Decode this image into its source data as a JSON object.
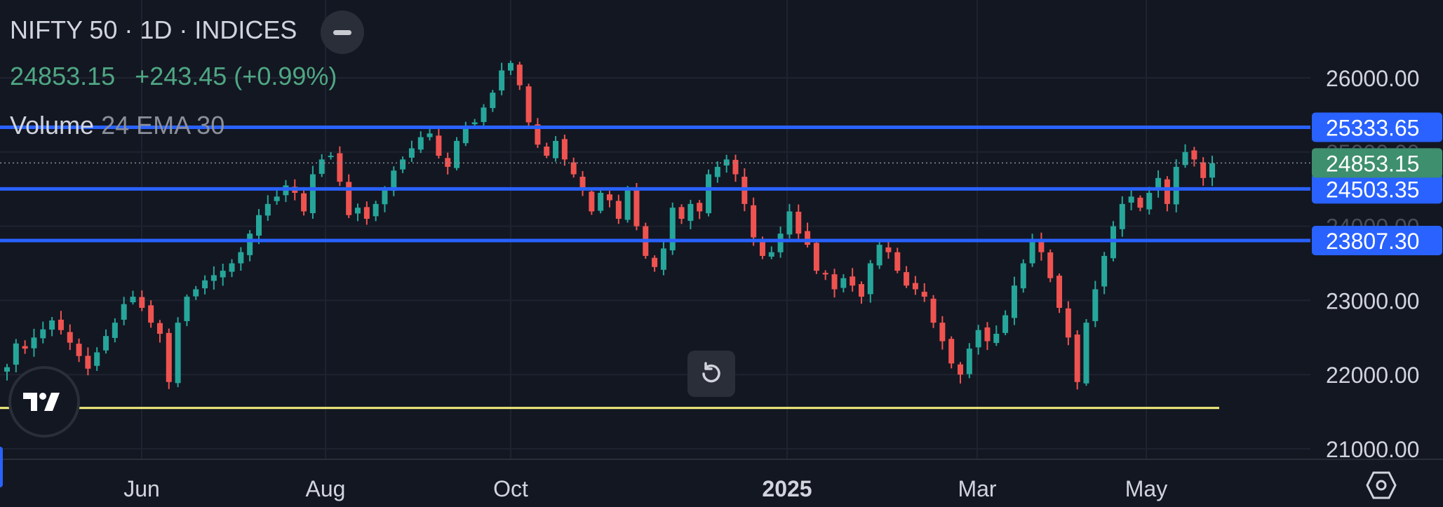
{
  "header": {
    "title": "NIFTY 50 · 1D · INDICES",
    "last_price": "24853.15",
    "change": "+243.45 (+0.99%)",
    "indicator_label": "Volume",
    "indicator_params": "24 EMA 30"
  },
  "icons": {
    "collapse": "minus-circle-icon",
    "reset": "rotate-ccw-icon",
    "logo": "tradingview-logo-icon",
    "settings": "hexagon-settings-icon"
  },
  "colors": {
    "background": "#131722",
    "up": "#26a69a",
    "down": "#ef5350",
    "hline": "#2962ff",
    "support": "#f5f07a",
    "last_price_tag": "#3e8f6e",
    "grid": "#1f2330",
    "axis_text": "#d1d4dc"
  },
  "chart_data": {
    "type": "candlestick",
    "symbol": "NIFTY 50",
    "interval": "1D",
    "ylim": [
      20800,
      26400
    ],
    "x_ticks": [
      "Jun",
      "Aug",
      "Oct",
      "2025",
      "Mar",
      "May"
    ],
    "y_ticks": [
      "26000.00",
      "23000.00",
      "22000.00",
      "21000.00"
    ],
    "y_ticks_faded": [
      "25000.00",
      "24000.00"
    ],
    "horizontal_lines": [
      {
        "value": 25333.65,
        "label": "25333.65",
        "color": "#2962ff"
      },
      {
        "value": 24503.35,
        "label": "24503.35",
        "color": "#2962ff"
      },
      {
        "value": 23807.3,
        "label": "23807.30",
        "color": "#2962ff"
      },
      {
        "value": 21550,
        "label": "",
        "color": "#f5f07a"
      }
    ],
    "last_price": {
      "value": 24853.15,
      "label": "24853.15"
    },
    "candles_note": "approximate daily closes read from chart; OHLC generated from closes",
    "closes": [
      22100,
      22420,
      22350,
      22500,
      22610,
      22730,
      22600,
      22430,
      22250,
      22080,
      22300,
      22520,
      22700,
      22950,
      23050,
      22900,
      22700,
      22550,
      21900,
      22700,
      23050,
      23150,
      23270,
      23340,
      23400,
      23500,
      23650,
      23900,
      24150,
      24300,
      24400,
      24550,
      24450,
      24200,
      24700,
      24900,
      24950,
      24600,
      24150,
      24250,
      24100,
      24300,
      24500,
      24750,
      24900,
      25050,
      25200,
      25250,
      24950,
      24800,
      25150,
      25350,
      25400,
      25600,
      25800,
      26100,
      26200,
      25900,
      25400,
      25100,
      24950,
      25150,
      24900,
      24700,
      24500,
      24200,
      24450,
      24350,
      24100,
      24500,
      24000,
      23600,
      23450,
      23700,
      24250,
      24100,
      24300,
      24200,
      24700,
      24800,
      24900,
      24700,
      24300,
      23850,
      23600,
      23650,
      23900,
      24200,
      23900,
      23750,
      23400,
      23350,
      23150,
      23300,
      23200,
      23050,
      23500,
      23750,
      23650,
      23400,
      23200,
      23150,
      23050,
      22700,
      22450,
      22150,
      22000,
      22350,
      22600,
      22450,
      22550,
      22800,
      23200,
      23500,
      23800,
      23650,
      23300,
      22900,
      22500,
      21900,
      22700,
      23150,
      23600,
      24000,
      24300,
      24400,
      24250,
      24450,
      24650,
      24300,
      24800,
      25000,
      24900,
      24650,
      24850
    ],
    "series": [
      {
        "name": "NIFTY 50",
        "values": "closes"
      }
    ]
  }
}
